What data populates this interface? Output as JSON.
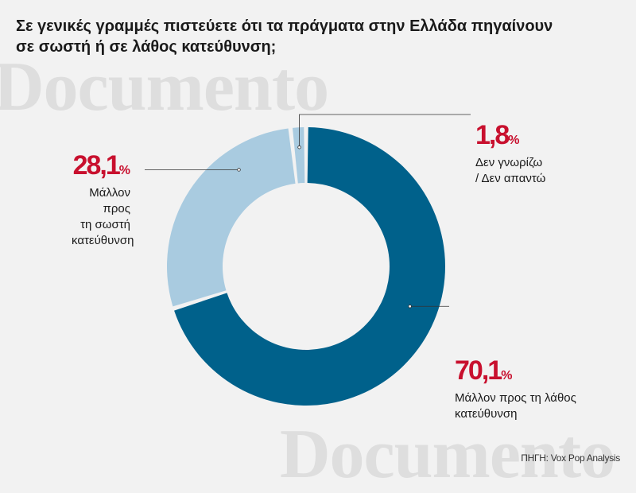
{
  "title": "Σε γενικές γραμμές πιστεύετε ότι τα πράγματα στην Ελλάδα πηγαίνουν σε σωστή ή σε λάθος κατεύθυνση;",
  "watermark": "Documento",
  "source": "ΠΗΓΗ: Vox Pop Analysis",
  "colors": {
    "wrong": "#00618b",
    "right": "#a9cbe0",
    "dont_know": "#a9cbe0",
    "accent": "#c8102e"
  },
  "chart_data": {
    "type": "pie",
    "variant": "donut",
    "title": "Σε γενικές γραμμές πιστεύετε ότι τα πράγματα στην Ελλάδα πηγαίνουν σε σωστή ή σε λάθος κατεύθυνση;",
    "unit": "%",
    "slices": [
      {
        "key": "wrong",
        "value_label": "70,1",
        "value": 70.1,
        "label": "Μάλλον προς τη λάθος κατεύθυνση",
        "label_lines": [
          "Μάλλον προς τη λάθος",
          "κατεύθυνση"
        ],
        "color": "#00618b"
      },
      {
        "key": "right",
        "value_label": "28,1",
        "value": 28.1,
        "label": "Μάλλον προς τη σωστή κατεύθυνση",
        "label_lines": [
          "Μάλλον προς",
          "τη σωστή",
          "κατεύθυνση"
        ],
        "color": "#a9cbe0"
      },
      {
        "key": "dont_know",
        "value_label": "1,8",
        "value": 1.8,
        "label": "Δεν γνωρίζω / Δεν απαντώ",
        "label_lines": [
          "Δεν γνωρίζω",
          "/ Δεν απαντώ"
        ],
        "color": "#a9cbe0"
      }
    ]
  }
}
